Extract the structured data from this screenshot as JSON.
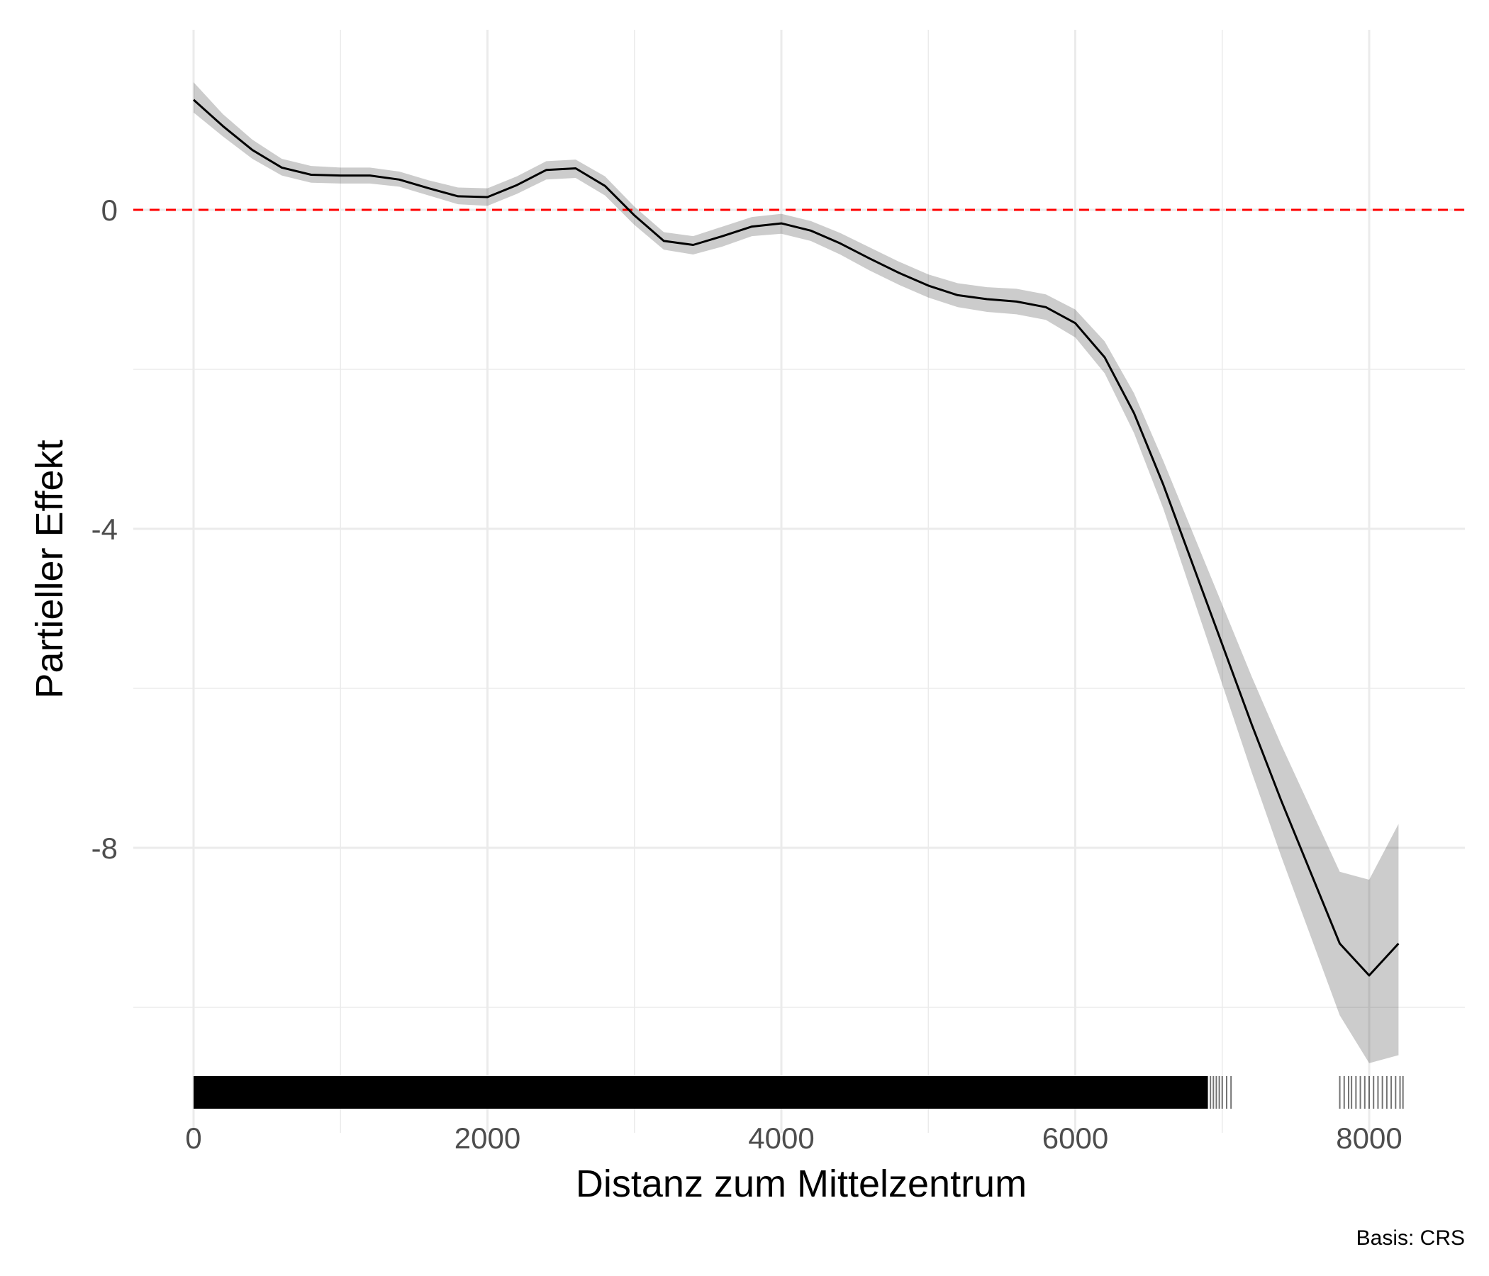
{
  "chart_data": {
    "type": "line",
    "xlabel": "Distanz zum Mittelzentrum",
    "ylabel": "Partieller Effekt",
    "caption": "Basis: CRS",
    "xlim": [
      -400,
      8650
    ],
    "ylim": [
      -11.6,
      2.0
    ],
    "x_ticks": [
      0,
      2000,
      4000,
      6000,
      8000
    ],
    "x_tick_labels": [
      "0",
      "2000",
      "4000",
      "6000",
      "8000"
    ],
    "x_minor_ticks": [
      1000,
      3000,
      5000,
      7000
    ],
    "y_ticks": [
      0,
      -4,
      -8
    ],
    "y_tick_labels": [
      "0",
      "-4",
      "-8"
    ],
    "y_minor_ticks": [
      -2,
      -6,
      -10
    ],
    "grid": true,
    "reference_line": {
      "y": 0,
      "color": "#ff0000",
      "style": "dashed"
    },
    "series": [
      {
        "x": [
          0,
          200,
          400,
          600,
          800,
          1000,
          1200,
          1400,
          1600,
          1800,
          2000,
          2200,
          2400,
          2600,
          2800,
          3000,
          3200,
          3400,
          3600,
          3800,
          4000,
          4200,
          4400,
          4600,
          4800,
          5000,
          5200,
          5400,
          5600,
          5800,
          6000,
          6200,
          6400,
          6600,
          6800,
          7000,
          7200,
          7400,
          7600,
          7800,
          8000,
          8200
        ],
        "y": [
          1.38,
          1.05,
          0.75,
          0.53,
          0.44,
          0.43,
          0.43,
          0.38,
          0.27,
          0.17,
          0.16,
          0.31,
          0.5,
          0.52,
          0.3,
          -0.07,
          -0.39,
          -0.44,
          -0.33,
          -0.21,
          -0.17,
          -0.26,
          -0.42,
          -0.61,
          -0.79,
          -0.95,
          -1.07,
          -1.12,
          -1.15,
          -1.22,
          -1.42,
          -1.85,
          -2.55,
          -3.45,
          -4.45,
          -5.45,
          -6.45,
          -7.4,
          -8.3,
          -9.2,
          -9.6,
          -9.2
        ]
      }
    ],
    "confidence_band": {
      "x": [
        0,
        200,
        400,
        600,
        800,
        1000,
        1200,
        1400,
        1600,
        1800,
        2000,
        2200,
        2400,
        2600,
        2800,
        3000,
        3200,
        3400,
        3600,
        3800,
        4000,
        4200,
        4400,
        4600,
        4800,
        5000,
        5200,
        5400,
        5600,
        5800,
        6000,
        6200,
        6400,
        6600,
        6800,
        7000,
        7200,
        7400,
        7600,
        7800,
        8000,
        8200
      ],
      "lower": [
        1.22,
        0.92,
        0.64,
        0.43,
        0.34,
        0.33,
        0.33,
        0.29,
        0.18,
        0.07,
        0.05,
        0.2,
        0.38,
        0.4,
        0.18,
        -0.19,
        -0.5,
        -0.56,
        -0.46,
        -0.33,
        -0.3,
        -0.39,
        -0.56,
        -0.76,
        -0.94,
        -1.1,
        -1.22,
        -1.28,
        -1.31,
        -1.38,
        -1.6,
        -2.05,
        -2.8,
        -3.75,
        -4.85,
        -5.95,
        -7.05,
        -8.1,
        -9.1,
        -10.1,
        -10.7,
        -10.6
      ],
      "upper": [
        1.6,
        1.2,
        0.88,
        0.64,
        0.55,
        0.53,
        0.53,
        0.48,
        0.37,
        0.28,
        0.27,
        0.42,
        0.61,
        0.63,
        0.42,
        0.04,
        -0.28,
        -0.33,
        -0.21,
        -0.09,
        -0.05,
        -0.14,
        -0.29,
        -0.47,
        -0.65,
        -0.81,
        -0.92,
        -0.97,
        -0.99,
        -1.06,
        -1.25,
        -1.65,
        -2.3,
        -3.15,
        -4.05,
        -4.95,
        -5.85,
        -6.7,
        -7.5,
        -8.3,
        -8.4,
        -7.7
      ]
    },
    "rug": {
      "dense_range": [
        0,
        6900
      ],
      "x": [
        6880,
        6900,
        6920,
        6940,
        6960,
        6980,
        7000,
        7030,
        7060,
        7800,
        7830,
        7860,
        7880,
        7910,
        7940,
        7970,
        8000,
        8030,
        8060,
        8090,
        8120,
        8150,
        8180,
        8210,
        8230
      ]
    }
  }
}
